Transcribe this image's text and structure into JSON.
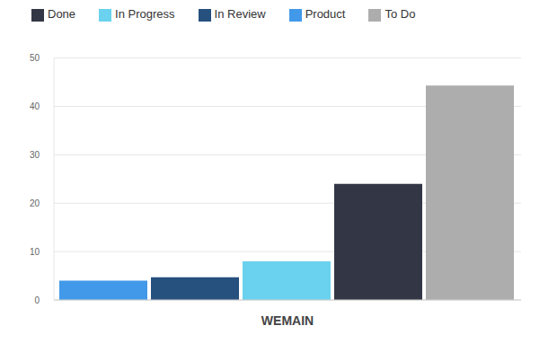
{
  "chart_data": {
    "type": "bar",
    "categories": [
      "WEMAIN"
    ],
    "series": [
      {
        "name": "Product",
        "color": "#4299e9",
        "values": [
          4
        ]
      },
      {
        "name": "In Review",
        "color": "#26507e",
        "values": [
          4.7
        ]
      },
      {
        "name": "In Progress",
        "color": "#6ad2ee",
        "values": [
          8
        ]
      },
      {
        "name": "Done",
        "color": "#333645",
        "values": [
          24
        ]
      },
      {
        "name": "To Do",
        "color": "#adadad",
        "values": [
          44.3
        ]
      }
    ],
    "ylim": [
      0,
      50
    ],
    "yticks": [
      0,
      10,
      20,
      30,
      40,
      50
    ],
    "grid": true,
    "legend": "top-left"
  }
}
